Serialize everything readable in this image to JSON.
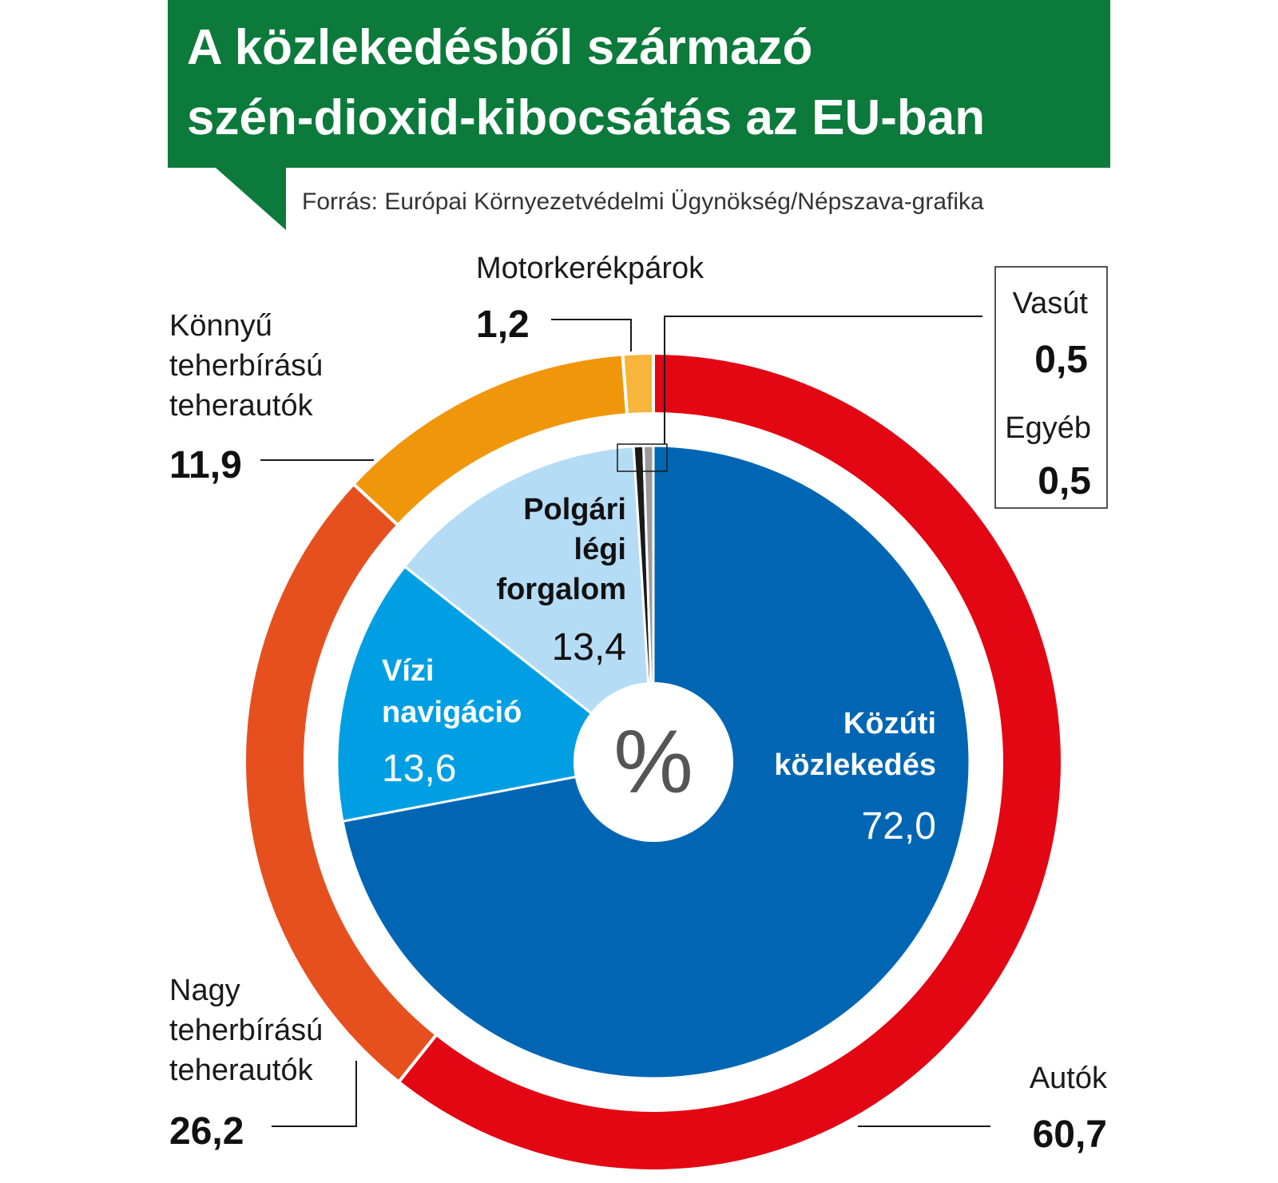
{
  "header": {
    "title_line1": "A közlekedésből származó",
    "title_line2": "szén-dioxid-kibocsátás az EU-ban",
    "source": "Forrás: Európai Környezetvédelmi Ügynökség/Népszava-grafika",
    "bg_color": "#0b7a3b"
  },
  "chart_data": {
    "type": "pie",
    "unit_symbol": "%",
    "inner": {
      "series": [
        {
          "name": "Közúti közlekedés",
          "lines": [
            "Közúti",
            "közlekedés"
          ],
          "value": 72.0,
          "value_label": "72,0",
          "color": "#0066b3",
          "text_color": "#ffffff"
        },
        {
          "name": "Vízi navigáció",
          "lines": [
            "Vízi",
            "navigáció"
          ],
          "value": 13.6,
          "value_label": "13,6",
          "color": "#009fe3",
          "text_color": "#ffffff"
        },
        {
          "name": "Polgári légi forgalom",
          "lines": [
            "Polgári",
            "légi",
            "forgalom"
          ],
          "value": 13.4,
          "value_label": "13,4",
          "color": "#b5dcf5",
          "text_color": "#111111"
        },
        {
          "name": "Vasút",
          "value": 0.5,
          "value_label": "0,5",
          "color": "#1a1a1a"
        },
        {
          "name": "Egyéb",
          "value": 0.5,
          "value_label": "0,5",
          "color": "#9a9a9a"
        }
      ]
    },
    "outer": {
      "series": [
        {
          "name": "Autók",
          "lines": [
            "Autók"
          ],
          "value": 60.7,
          "value_label": "60,7",
          "color": "#e30613"
        },
        {
          "name": "Nagy teherbírású teherautók",
          "lines": [
            "Nagy",
            "teherbírású",
            "teherautók"
          ],
          "value": 26.2,
          "value_label": "26,2",
          "color": "#e6501e"
        },
        {
          "name": "Könnyű teherbírású teherautók",
          "lines": [
            "Könnyű",
            "teherbírású",
            "teherautók"
          ],
          "value": 11.9,
          "value_label": "11,9",
          "color": "#f0960a"
        },
        {
          "name": "Motorkerékpárok",
          "lines": [
            "Motorkerékpárok"
          ],
          "value": 1.2,
          "value_label": "1,2",
          "color": "#f7b53c"
        }
      ]
    }
  }
}
